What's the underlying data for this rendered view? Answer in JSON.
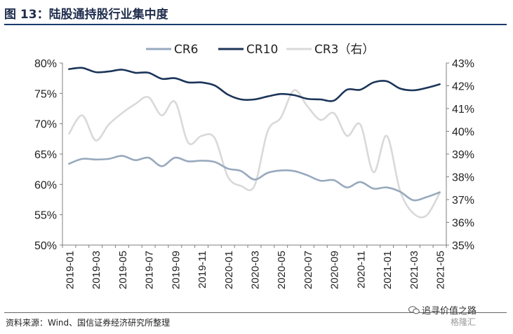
{
  "title": "图 13：陆股通持股行业集中度",
  "source": "资料来源：Wind、国信证券经济研究所整理",
  "watermark": {
    "text": "追寻价值之路",
    "sub": "格隆汇",
    "icon": "wechat-icon"
  },
  "chart_data": {
    "type": "line",
    "legend_position": "top-center",
    "grid": false,
    "x": [
      "2019-01",
      "2019-02",
      "2019-03",
      "2019-04",
      "2019-05",
      "2019-06",
      "2019-07",
      "2019-08",
      "2019-09",
      "2019-10",
      "2019-11",
      "2019-12",
      "2020-01",
      "2020-02",
      "2020-03",
      "2020-04",
      "2020-05",
      "2020-06",
      "2020-07",
      "2020-08",
      "2020-09",
      "2020-10",
      "2020-11",
      "2020-12",
      "2021-01",
      "2021-02",
      "2021-03",
      "2021-04",
      "2021-05"
    ],
    "xticks": [
      "2019-01",
      "2019-03",
      "2019-05",
      "2019-07",
      "2019-09",
      "2019-11",
      "2020-01",
      "2020-03",
      "2020-05",
      "2020-07",
      "2020-09",
      "2020-11",
      "2021-01",
      "2021-03",
      "2021-05"
    ],
    "ylim_left": [
      50,
      80
    ],
    "yticks_left": [
      "50%",
      "55%",
      "60%",
      "65%",
      "70%",
      "75%",
      "80%"
    ],
    "ylim_right": [
      35,
      43
    ],
    "yticks_right": [
      "35%",
      "36%",
      "37%",
      "38%",
      "39%",
      "40%",
      "41%",
      "42%",
      "43%"
    ],
    "series": [
      {
        "name": "CR6",
        "axis": "left",
        "color": "#97a9bd",
        "values": [
          63.4,
          64.2,
          64.1,
          64.2,
          64.7,
          64.0,
          64.4,
          63.0,
          64.4,
          63.8,
          63.9,
          63.7,
          62.6,
          62.2,
          60.8,
          61.9,
          62.3,
          62.2,
          61.5,
          60.6,
          60.7,
          59.5,
          60.4,
          59.3,
          59.5,
          58.8,
          57.4,
          57.9,
          58.7
        ]
      },
      {
        "name": "CR10",
        "axis": "left",
        "color": "#1b3459",
        "values": [
          79.0,
          79.2,
          78.5,
          78.6,
          78.9,
          78.4,
          78.4,
          77.4,
          77.5,
          76.8,
          76.8,
          76.3,
          74.8,
          74.0,
          74.0,
          74.5,
          74.9,
          74.7,
          74.1,
          74.0,
          73.8,
          75.6,
          75.6,
          76.8,
          77.0,
          75.8,
          75.5,
          75.9,
          76.5
        ]
      },
      {
        "name": "CR3（右）",
        "axis": "right",
        "color": "#d9d9d9",
        "values": [
          39.9,
          40.7,
          39.6,
          40.3,
          40.8,
          41.2,
          41.5,
          40.7,
          41.3,
          39.5,
          39.8,
          39.7,
          38.0,
          37.6,
          37.6,
          40.0,
          40.6,
          41.8,
          41.1,
          40.5,
          40.8,
          39.8,
          40.3,
          38.2,
          39.8,
          37.4,
          36.4,
          36.3,
          37.3
        ]
      }
    ]
  }
}
